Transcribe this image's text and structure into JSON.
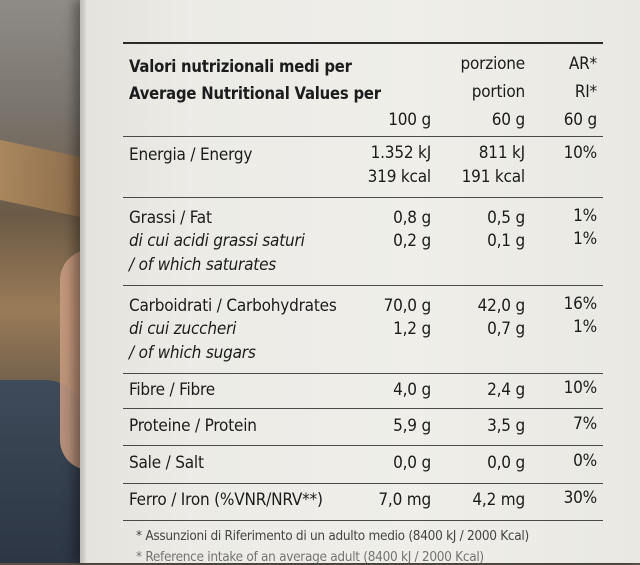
{
  "header": {
    "title_it": "Valori nutrizionali medi per",
    "title_en": "Average Nutritional Values per",
    "col_100": "100 g",
    "col_portion_it": "porzione",
    "col_portion_en": "portion",
    "col_portion_size": "60 g",
    "col_ar_1": "AR*",
    "col_ar_2": "RI*",
    "col_ar_size": "60 g"
  },
  "rows": [
    {
      "label": "Energia / Energy",
      "v100": "1.352 kJ",
      "v100b": "319 kcal",
      "vpor": "811 kJ",
      "vporb": "191 kcal",
      "ar": "10%"
    },
    {
      "label": "Grassi / Fat",
      "v100": "0,8 g",
      "vpor": "0,5 g",
      "ar": "1%",
      "sub_it": "di cui acidi grassi saturi",
      "sub_en": "/ of which saturates",
      "sub_v100": "0,2 g",
      "sub_vpor": "0,1 g",
      "sub_ar": "1%"
    },
    {
      "label": "Carboidrati / Carbohydrates",
      "v100": "70,0 g",
      "vpor": "42,0 g",
      "ar": "16%",
      "sub_it": "di cui zuccheri",
      "sub_en": "/ of which sugars",
      "sub_v100": "1,2 g",
      "sub_vpor": "0,7 g",
      "sub_ar": "1%"
    },
    {
      "label": "Fibre / Fibre",
      "v100": "4,0 g",
      "vpor": "2,4 g",
      "ar": "10%"
    },
    {
      "label": "Proteine / Protein",
      "v100": "5,9 g",
      "vpor": "3,5 g",
      "ar": "7%"
    },
    {
      "label": "Sale / Salt",
      "v100": "0,0 g",
      "vpor": "0,0 g",
      "ar": "0%"
    },
    {
      "label": "Ferro / Iron (%VNR/NRV**)",
      "v100": "7,0 mg",
      "vpor": "4,2 mg",
      "ar": "30%"
    }
  ],
  "footnote": "* Assunzioni di Riferimento di un adulto medio (8400 kJ / 2000 Kcal)",
  "footnote2": "* Reference intake of an average adult (8400 kJ / 2000 Kcal)"
}
